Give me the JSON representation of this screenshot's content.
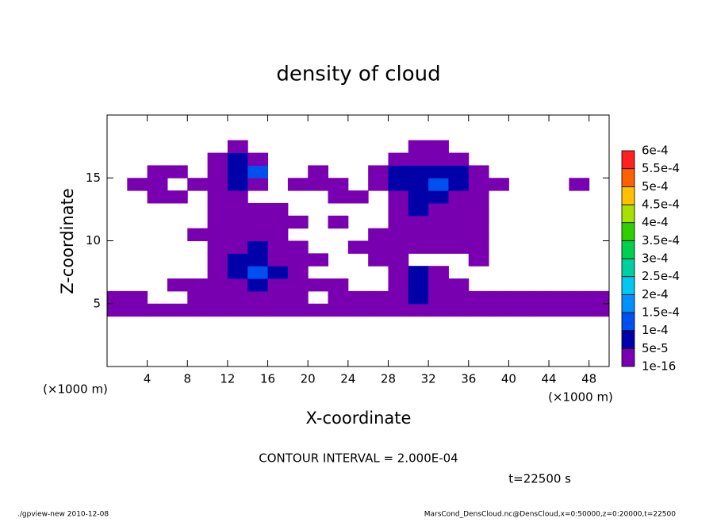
{
  "chart_data": {
    "type": "contour",
    "title": "density of cloud",
    "x_label": "X-coordinate",
    "y_label": "Z-coordinate",
    "x_unit": "(×1000 m)",
    "contour_interval": "CONTOUR INTERVAL = 2.000E-04",
    "time_label": "t=22500 s",
    "footer_left": "./gpview-new  2010-12-08",
    "footer_right": "MarsCond_DensCloud.nc@DensCloud,x=0:50000,z=0:20000,t=22500",
    "xlim": [
      0,
      50
    ],
    "ylim": [
      0,
      20
    ],
    "xticks": [
      4,
      8,
      12,
      16,
      20,
      24,
      28,
      32,
      36,
      40,
      44,
      48
    ],
    "yticks": [
      5,
      10,
      15
    ],
    "x": [
      1,
      3,
      5,
      7,
      9,
      11,
      13,
      15,
      17,
      19,
      21,
      23,
      25,
      27,
      29,
      31,
      33,
      35,
      37,
      39,
      41,
      43,
      45,
      47,
      49
    ],
    "z": [
      0.5,
      1.5,
      2.5,
      3.5,
      4.5,
      5.5,
      6.5,
      7.5,
      8.5,
      9.5,
      10.5,
      11.5,
      12.5,
      13.5,
      14.5,
      15.5,
      16.5,
      17.5,
      18.5,
      19.5
    ],
    "values": [
      [
        0,
        0,
        0,
        0,
        0,
        0,
        0,
        0,
        0,
        0,
        0,
        0,
        0,
        0,
        0,
        0,
        0,
        0,
        0,
        0,
        0,
        0,
        0,
        0,
        0
      ],
      [
        0,
        0,
        0,
        0,
        0,
        0,
        0,
        0,
        0,
        0,
        0,
        0,
        0,
        0,
        0,
        0,
        0,
        0,
        0,
        0,
        0,
        0,
        0,
        0,
        0
      ],
      [
        0,
        0,
        0,
        0,
        0,
        0,
        0,
        0,
        0,
        0,
        0,
        0,
        0,
        0,
        0,
        0,
        0,
        0,
        0,
        0,
        0,
        0,
        0,
        0,
        0
      ],
      [
        0,
        0,
        0,
        0,
        0,
        0,
        0,
        0,
        0,
        0,
        0,
        0,
        0,
        0,
        0,
        0,
        0,
        0,
        0,
        0,
        0,
        0,
        0,
        0,
        0
      ],
      [
        1e-16,
        1e-16,
        1e-16,
        1e-16,
        1e-16,
        1e-16,
        1e-16,
        1e-16,
        1e-16,
        1e-16,
        1e-16,
        1e-16,
        1e-16,
        1e-16,
        1e-16,
        1e-16,
        1e-16,
        1e-16,
        1e-16,
        1e-16,
        1e-16,
        1e-16,
        1e-16,
        1e-16,
        1e-16
      ],
      [
        1e-16,
        1e-16,
        0,
        0,
        1e-16,
        1e-16,
        1e-16,
        1e-16,
        1e-16,
        1e-16,
        0,
        1e-16,
        1e-16,
        1e-16,
        1e-16,
        5e-05,
        1e-16,
        1e-16,
        1e-16,
        1e-16,
        1e-16,
        1e-16,
        1e-16,
        1e-16,
        1e-16
      ],
      [
        0,
        0,
        0,
        1e-16,
        1e-16,
        1e-16,
        1e-16,
        5e-05,
        1e-16,
        1e-16,
        1e-16,
        1e-16,
        0,
        0,
        1e-16,
        5e-05,
        1e-16,
        1e-16,
        0,
        0,
        0,
        0,
        0,
        0,
        0
      ],
      [
        0,
        0,
        0,
        0,
        0,
        1e-16,
        5e-05,
        0.0001,
        5e-05,
        1e-16,
        0,
        0,
        0,
        0,
        1e-16,
        5e-05,
        1e-16,
        0,
        0,
        0,
        0,
        0,
        0,
        0,
        0
      ],
      [
        0,
        0,
        0,
        0,
        0,
        1e-16,
        5e-05,
        5e-05,
        1e-16,
        1e-16,
        1e-16,
        0,
        0,
        1e-16,
        1e-16,
        0,
        0,
        0,
        1e-16,
        0,
        0,
        0,
        0,
        0,
        0
      ],
      [
        0,
        0,
        0,
        0,
        0,
        1e-16,
        1e-16,
        5e-05,
        1e-16,
        1e-16,
        0,
        0,
        1e-16,
        1e-16,
        1e-16,
        1e-16,
        1e-16,
        1e-16,
        1e-16,
        0,
        0,
        0,
        0,
        0,
        0
      ],
      [
        0,
        0,
        0,
        0,
        1e-16,
        1e-16,
        1e-16,
        1e-16,
        1e-16,
        0,
        0,
        0,
        0,
        1e-16,
        1e-16,
        1e-16,
        1e-16,
        1e-16,
        1e-16,
        0,
        0,
        0,
        0,
        0,
        0
      ],
      [
        0,
        0,
        0,
        0,
        0,
        1e-16,
        1e-16,
        1e-16,
        1e-16,
        1e-16,
        0,
        1e-16,
        0,
        0,
        1e-16,
        1e-16,
        1e-16,
        1e-16,
        1e-16,
        0,
        0,
        0,
        0,
        0,
        0
      ],
      [
        0,
        0,
        0,
        0,
        0,
        1e-16,
        1e-16,
        1e-16,
        1e-16,
        0,
        0,
        0,
        0,
        0,
        1e-16,
        5e-05,
        1e-16,
        1e-16,
        1e-16,
        0,
        0,
        0,
        0,
        0,
        0
      ],
      [
        0,
        0,
        1e-16,
        1e-16,
        0,
        1e-16,
        1e-16,
        0,
        0,
        0,
        0,
        1e-16,
        1e-16,
        0,
        1e-16,
        5e-05,
        5e-05,
        1e-16,
        1e-16,
        0,
        0,
        0,
        0,
        0,
        0
      ],
      [
        0,
        1e-16,
        1e-16,
        0,
        1e-16,
        1e-16,
        5e-05,
        1e-16,
        0,
        1e-16,
        1e-16,
        1e-16,
        0,
        1e-16,
        5e-05,
        5e-05,
        0.0001,
        5e-05,
        1e-16,
        1e-16,
        0,
        0,
        0,
        1e-16,
        0
      ],
      [
        0,
        0,
        1e-16,
        1e-16,
        0,
        1e-16,
        5e-05,
        0.0001,
        0,
        0,
        1e-16,
        0,
        0,
        1e-16,
        5e-05,
        5e-05,
        5e-05,
        5e-05,
        1e-16,
        0,
        0,
        0,
        0,
        0,
        0
      ],
      [
        0,
        0,
        0,
        0,
        0,
        1e-16,
        5e-05,
        1e-16,
        0,
        0,
        0,
        0,
        0,
        0,
        1e-16,
        1e-16,
        1e-16,
        1e-16,
        0,
        0,
        0,
        0,
        0,
        0,
        0
      ],
      [
        0,
        0,
        0,
        0,
        0,
        0,
        1e-16,
        0,
        0,
        0,
        0,
        0,
        0,
        0,
        0,
        1e-16,
        1e-16,
        0,
        0,
        0,
        0,
        0,
        0,
        0,
        0
      ],
      [
        0,
        0,
        0,
        0,
        0,
        0,
        0,
        0,
        0,
        0,
        0,
        0,
        0,
        0,
        0,
        0,
        0,
        0,
        0,
        0,
        0,
        0,
        0,
        0,
        0
      ],
      [
        0,
        0,
        0,
        0,
        0,
        0,
        0,
        0,
        0,
        0,
        0,
        0,
        0,
        0,
        0,
        0,
        0,
        0,
        0,
        0,
        0,
        0,
        0,
        0,
        0
      ]
    ],
    "levels": [
      {
        "value": 1e-16,
        "label": "1e-16"
      },
      {
        "value": 5e-05,
        "label": "5e-5"
      },
      {
        "value": 0.0001,
        "label": "1e-4"
      },
      {
        "value": 0.00015,
        "label": "1.5e-4"
      },
      {
        "value": 0.0002,
        "label": "2e-4"
      },
      {
        "value": 0.00025,
        "label": "2.5e-4"
      },
      {
        "value": 0.0003,
        "label": "3e-4"
      },
      {
        "value": 0.00035,
        "label": "3.5e-4"
      },
      {
        "value": 0.0004,
        "label": "4e-4"
      },
      {
        "value": 0.00045,
        "label": "4.5e-4"
      },
      {
        "value": 0.0005,
        "label": "5e-4"
      },
      {
        "value": 0.00055,
        "label": "5.5e-4"
      },
      {
        "value": 0.0006,
        "label": "6e-4"
      }
    ],
    "colors": [
      "#7800b0",
      "#0000a8",
      "#0050f0",
      "#0090ff",
      "#00c8f0",
      "#00d0a0",
      "#00d050",
      "#30d000",
      "#a8e000",
      "#ffc000",
      "#ff6000",
      "#ff2020"
    ]
  }
}
